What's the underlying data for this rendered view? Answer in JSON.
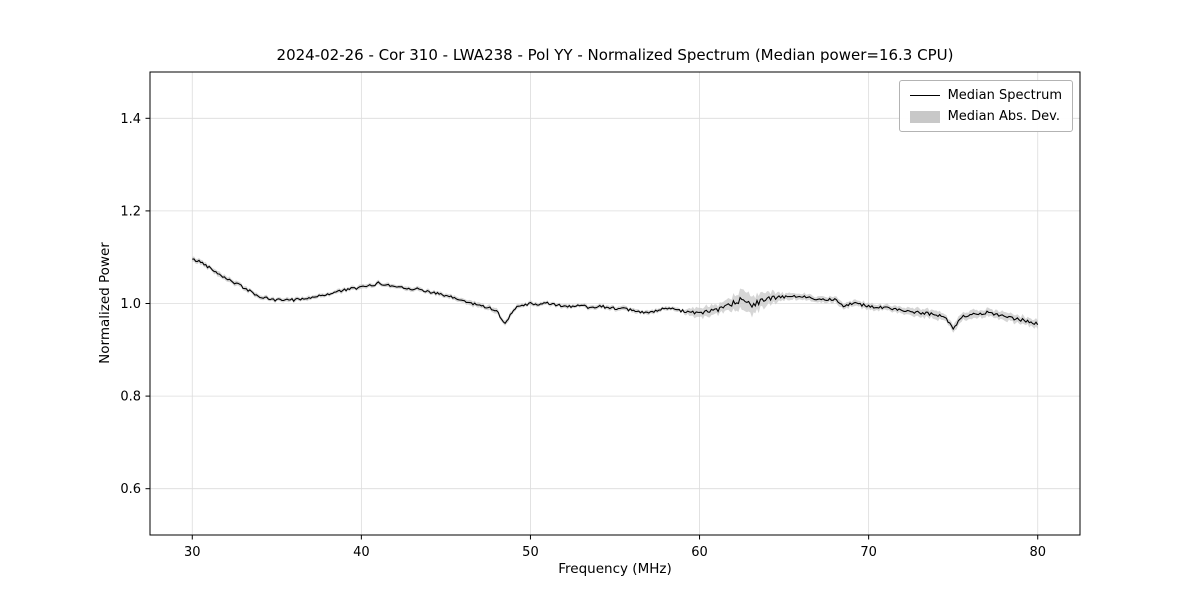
{
  "header": {
    "date": "2024-02-26",
    "correlator": "Cor 310",
    "antenna": "LWA238",
    "polarization": "Pol YY",
    "median_power": "16.3 CPU"
  },
  "chart_data": {
    "type": "line",
    "title": "2024-02-26 - Cor 310 - LWA238 - Pol YY - Normalized Spectrum (Median power=16.3 CPU)",
    "xlabel": "Frequency (MHz)",
    "ylabel": "Normalized Power",
    "xlim": [
      27.5,
      82.5
    ],
    "ylim": [
      0.5,
      1.5
    ],
    "xticks": [
      30,
      40,
      50,
      60,
      70,
      80
    ],
    "yticks": [
      0.6,
      0.8,
      1.0,
      1.2,
      1.4
    ],
    "grid": true,
    "grid_color": "#dcdcdc",
    "line_color": "#000000",
    "band_color": "#c8c8c8",
    "noise_seed": 42,
    "noise_amplitude": 0.003,
    "upsample_step": 0.1,
    "legend": {
      "position": "upper right",
      "entries": [
        {
          "label": "Median Spectrum",
          "type": "line",
          "color": "#000000"
        },
        {
          "label": "Median Abs. Dev.",
          "type": "patch",
          "color": "#c8c8c8"
        }
      ]
    },
    "series": [
      {
        "name": "Median Spectrum",
        "x": [
          30,
          30.5,
          31,
          31.5,
          32,
          32.5,
          33,
          33.5,
          34,
          34.5,
          35,
          35.5,
          36,
          36.5,
          37,
          37.5,
          38,
          38.5,
          39,
          39.5,
          40,
          40.5,
          41,
          41.5,
          42,
          42.5,
          43,
          43.5,
          44,
          44.5,
          45,
          45.5,
          46,
          46.5,
          47,
          47.5,
          48,
          48.5,
          49,
          49.5,
          50,
          50.5,
          51,
          51.5,
          52,
          52.5,
          53,
          53.5,
          54,
          54.5,
          55,
          55.5,
          56,
          56.5,
          57,
          57.5,
          58,
          58.5,
          59,
          59.5,
          60,
          60.5,
          61,
          61.5,
          62,
          62.5,
          63,
          63.5,
          64,
          64.5,
          65,
          65.5,
          66,
          66.5,
          67,
          67.5,
          68,
          68.5,
          69,
          69.5,
          70,
          70.5,
          71,
          71.5,
          72,
          72.5,
          73,
          73.5,
          74,
          74.5,
          75,
          75.5,
          76,
          76.5,
          77,
          77.5,
          78,
          78.5,
          79,
          79.5,
          80
        ],
        "y": [
          1.095,
          1.09,
          1.078,
          1.066,
          1.055,
          1.045,
          1.035,
          1.025,
          1.014,
          1.01,
          1.007,
          1.009,
          1.008,
          1.01,
          1.013,
          1.016,
          1.02,
          1.025,
          1.029,
          1.032,
          1.035,
          1.038,
          1.044,
          1.04,
          1.037,
          1.035,
          1.032,
          1.03,
          1.026,
          1.021,
          1.016,
          1.012,
          1.006,
          1.0,
          0.996,
          0.992,
          0.984,
          0.956,
          0.988,
          0.995,
          1.0,
          0.998,
          1.0,
          0.997,
          0.995,
          0.993,
          0.996,
          0.991,
          0.995,
          0.992,
          0.99,
          0.988,
          0.985,
          0.982,
          0.98,
          0.984,
          0.989,
          0.987,
          0.984,
          0.982,
          0.98,
          0.982,
          0.985,
          0.99,
          1.0,
          1.008,
          1.0,
          1.005,
          1.01,
          1.012,
          1.014,
          1.015,
          1.015,
          1.013,
          1.01,
          1.008,
          1.01,
          0.996,
          1.0,
          0.998,
          0.995,
          0.992,
          0.99,
          0.989,
          0.986,
          0.983,
          0.98,
          0.978,
          0.976,
          0.972,
          0.945,
          0.97,
          0.975,
          0.978,
          0.98,
          0.976,
          0.972,
          0.968,
          0.965,
          0.96,
          0.955
        ]
      },
      {
        "name": "Median Abs. Dev.",
        "mad": [
          0.005,
          0.005,
          0.005,
          0.005,
          0.005,
          0.005,
          0.005,
          0.004,
          0.004,
          0.004,
          0.004,
          0.004,
          0.004,
          0.004,
          0.004,
          0.004,
          0.004,
          0.004,
          0.004,
          0.004,
          0.004,
          0.004,
          0.004,
          0.004,
          0.004,
          0.004,
          0.004,
          0.004,
          0.004,
          0.004,
          0.004,
          0.004,
          0.004,
          0.005,
          0.005,
          0.005,
          0.005,
          0.005,
          0.005,
          0.004,
          0.004,
          0.004,
          0.004,
          0.004,
          0.004,
          0.004,
          0.004,
          0.004,
          0.004,
          0.004,
          0.004,
          0.004,
          0.004,
          0.004,
          0.004,
          0.004,
          0.004,
          0.004,
          0.004,
          0.008,
          0.01,
          0.01,
          0.01,
          0.012,
          0.015,
          0.018,
          0.02,
          0.018,
          0.015,
          0.01,
          0.008,
          0.006,
          0.006,
          0.006,
          0.006,
          0.006,
          0.006,
          0.006,
          0.006,
          0.006,
          0.006,
          0.006,
          0.006,
          0.006,
          0.006,
          0.008,
          0.008,
          0.008,
          0.008,
          0.008,
          0.008,
          0.008,
          0.008,
          0.008,
          0.008,
          0.008,
          0.008,
          0.008,
          0.008,
          0.008,
          0.008
        ]
      }
    ]
  }
}
